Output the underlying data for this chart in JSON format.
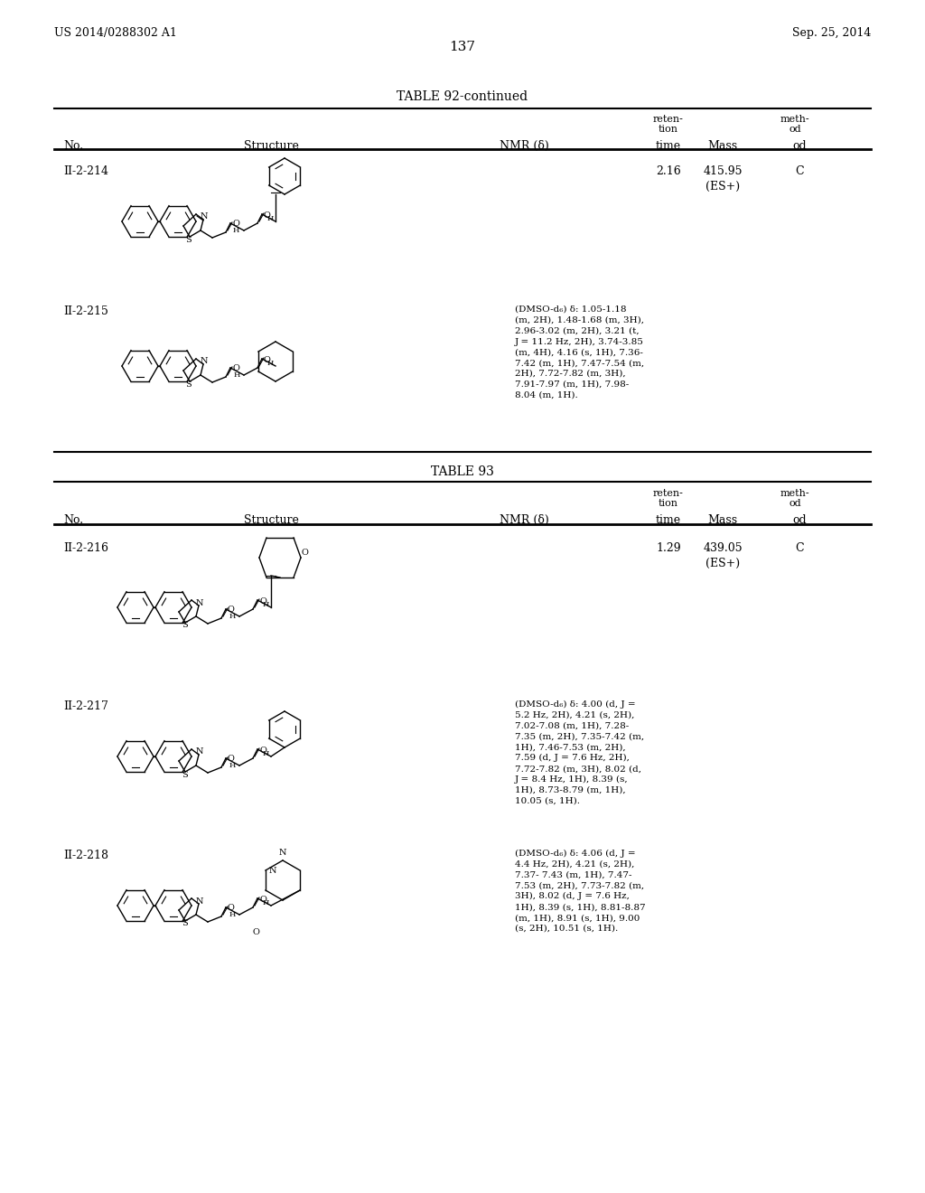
{
  "page_number": "137",
  "patent_number": "US 2014/0288302 A1",
  "patent_date": "Sep. 25, 2014",
  "background_color": "#ffffff",
  "text_color": "#000000",
  "table1_title": "TABLE 92-continued",
  "table2_title": "TABLE 93",
  "header_cols": [
    "No.",
    "Structure",
    "NMR (δ)",
    "reten-\ntion\ntime",
    "Mass",
    "meth-\nod"
  ],
  "rows_table1": [
    {
      "no": "II-2-214",
      "nmr": "",
      "retention": "2.16",
      "mass": "415.95\n(ES+)",
      "method": "C"
    },
    {
      "no": "II-2-215",
      "nmr": "(DMSO-d₆) δ: 1.05-1.18\n(m, 2H), 1.48-1.68 (m, 3H),\n2.96-3.02 (m, 2H), 3.21 (t,\nJ = 11.2 Hz, 2H), 3.74-3.85\n(m, 4H), 4.16 (s, 1H), 7.36-\n7.42 (m, 1H), 7.47-7.54 (m,\n2H), 7.72-7.82 (m, 3H),\n7.91-7.97 (m, 1H), 7.98-\n8.04 (m, 1H).",
      "retention": "",
      "mass": "",
      "method": ""
    }
  ],
  "rows_table2": [
    {
      "no": "II-2-216",
      "nmr": "",
      "retention": "1.29",
      "mass": "439.05\n(ES+)",
      "method": "C"
    },
    {
      "no": "II-2-217",
      "nmr": "(DMSO-d₆) δ: 4.00 (d, J =\n5.2 Hz, 2H), 4.21 (s, 2H),\n7.02-7.08 (m, 1H), 7.28-\n7.35 (m, 2H), 7.35-7.42 (m,\n1H), 7.46-7.53 (m, 2H),\n7.59 (d, J = 7.6 Hz, 2H),\n7.72-7.82 (m, 3H), 8.02 (d,\nJ = 8.4 Hz, 1H), 8.39 (s,\n1H), 8.73-8.79 (m, 1H),\n10.05 (s, 1H).",
      "retention": "",
      "mass": "",
      "method": ""
    },
    {
      "no": "II-2-218",
      "nmr": "(DMSO-d₆) δ: 4.06 (d, J =\n4.4 Hz, 2H), 4.21 (s, 2H),\n7.37- 7.43 (m, 1H), 7.47-\n7.53 (m, 2H), 7.73-7.82 (m,\n3H), 8.02 (d, J = 7.6 Hz,\n1H), 8.39 (s, 1H), 8.81-8.87\n(m, 1H), 8.91 (s, 1H), 9.00\n(s, 2H), 10.51 (s, 1H).",
      "retention": "",
      "mass": "",
      "method": ""
    }
  ]
}
